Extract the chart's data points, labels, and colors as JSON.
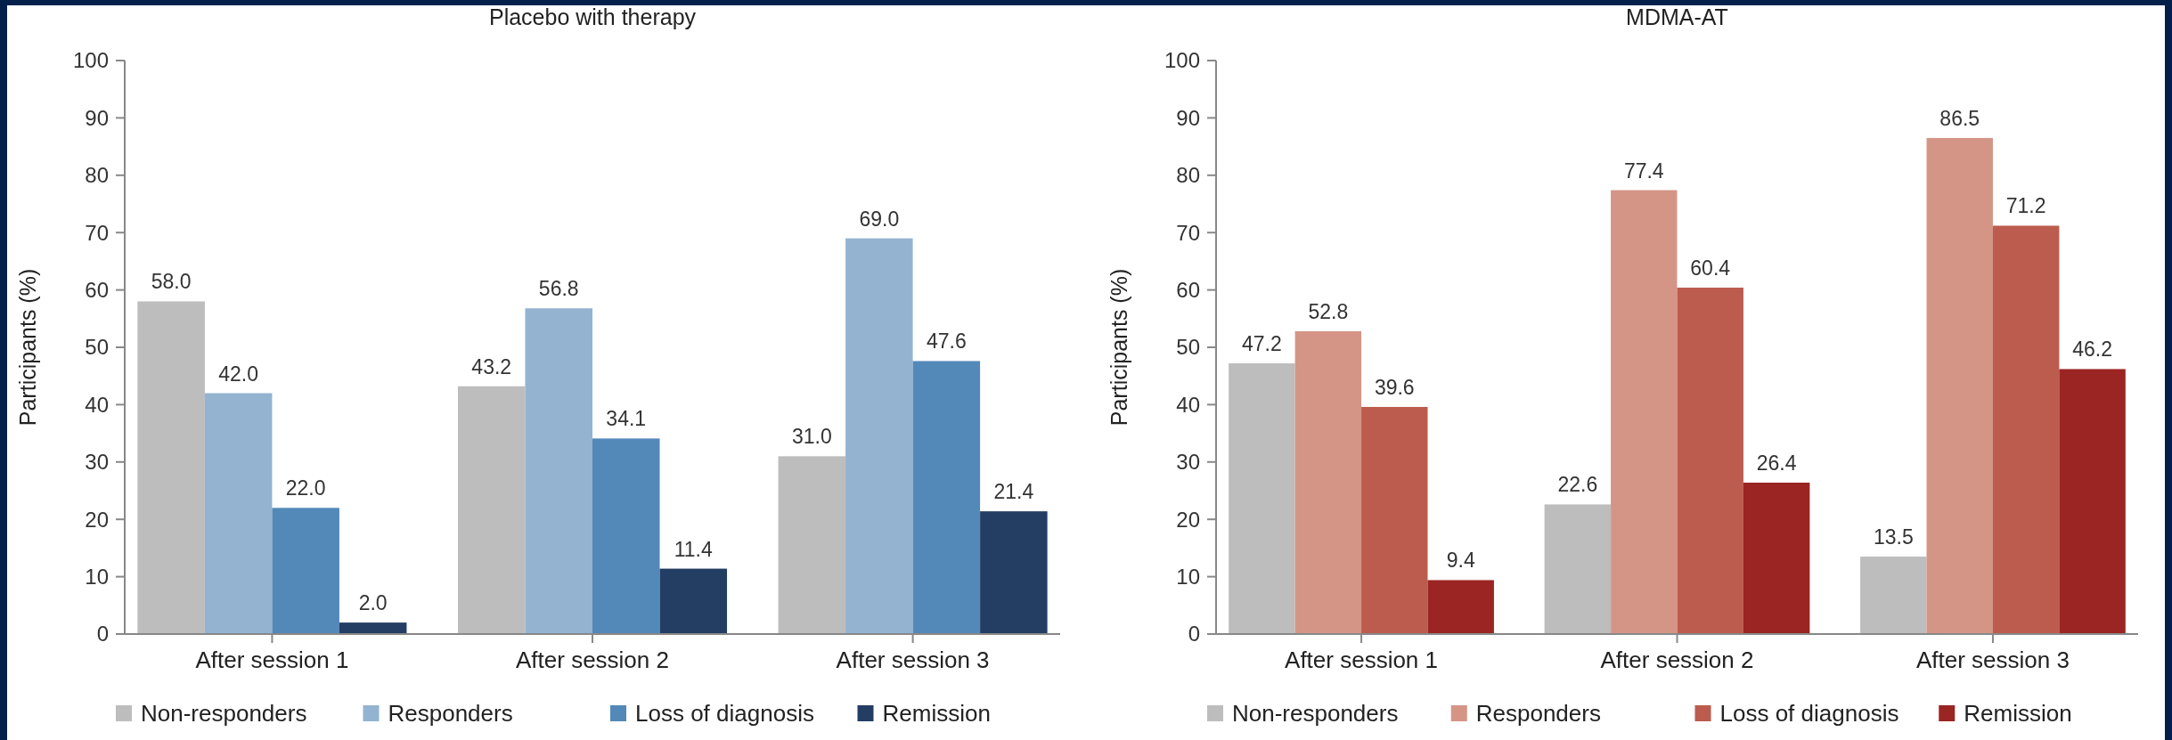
{
  "chart_data": [
    {
      "type": "bar",
      "title": "Placebo with therapy",
      "ylabel": "Participants (%)",
      "categories": [
        "After session 1",
        "After session 2",
        "After session 3"
      ],
      "series": [
        {
          "name": "Non-responders",
          "color": "#bdbdbd",
          "values": [
            58.0,
            43.2,
            31.0
          ],
          "value_labels": [
            "58.0",
            "43.2",
            "31.0"
          ]
        },
        {
          "name": "Responders",
          "color": "#93b3d1",
          "values": [
            42.0,
            56.8,
            69.0
          ],
          "value_labels": [
            "42.0",
            "56.8",
            "69.0"
          ]
        },
        {
          "name": "Loss of diagnosis",
          "color": "#5389b9",
          "values": [
            22.0,
            34.1,
            47.6
          ],
          "value_labels": [
            "22.0",
            "34.1",
            "47.6"
          ]
        },
        {
          "name": "Remission",
          "color": "#233d63",
          "values": [
            2.0,
            11.4,
            21.4
          ],
          "value_labels": [
            "2.0",
            "11.4",
            "21.4"
          ]
        }
      ],
      "ylim": [
        0,
        100
      ],
      "yticks": [
        0,
        10,
        20,
        30,
        40,
        50,
        60,
        70,
        80,
        90,
        100
      ],
      "legend": "bottom"
    },
    {
      "type": "bar",
      "title": "MDMA-AT",
      "ylabel": "Participants (%)",
      "categories": [
        "After session 1",
        "After session 2",
        "After session 3"
      ],
      "series": [
        {
          "name": "Non-responders",
          "color": "#bdbdbd",
          "values": [
            47.2,
            22.6,
            13.5
          ],
          "value_labels": [
            "47.2",
            "22.6",
            "13.5"
          ]
        },
        {
          "name": "Responders",
          "color": "#d49587",
          "values": [
            52.8,
            77.4,
            86.5
          ],
          "value_labels": [
            "52.8",
            "77.4",
            "86.5"
          ]
        },
        {
          "name": "Loss of diagnosis",
          "color": "#bb5c4e",
          "values": [
            39.6,
            60.4,
            71.2
          ],
          "value_labels": [
            "39.6",
            "60.4",
            "71.2"
          ]
        },
        {
          "name": "Remission",
          "color": "#9a2522",
          "values": [
            9.4,
            26.4,
            46.2
          ],
          "value_labels": [
            "9.4",
            "26.4",
            "46.2"
          ]
        }
      ],
      "ylim": [
        0,
        100
      ],
      "yticks": [
        0,
        10,
        20,
        30,
        40,
        50,
        60,
        70,
        80,
        90,
        100
      ],
      "legend": "bottom"
    }
  ]
}
